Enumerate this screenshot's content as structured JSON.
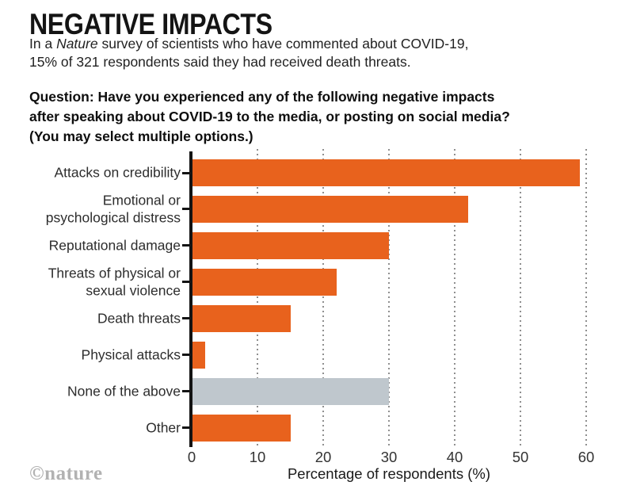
{
  "header": {
    "title": "NEGATIVE IMPACTS",
    "subtitle": {
      "line1_pre": "In a ",
      "line1_italic": "Nature",
      "line1_post": " survey of scientists who have commented about COVID-19,",
      "line2": "15% of 321 respondents said they had received death threats."
    },
    "question_lines": [
      "Question: Have you experienced any of the following negative impacts",
      "after speaking about COVID-19 to the media, or posting on social media?",
      "(You may select multiple options.)"
    ]
  },
  "chart_data": {
    "type": "bar",
    "orientation": "horizontal",
    "title": "NEGATIVE IMPACTS",
    "xlabel": "Percentage of respondents (%)",
    "xlim": [
      0,
      60
    ],
    "xticks": [
      0,
      10,
      20,
      30,
      40,
      50,
      60
    ],
    "grid": "dotted-vertical",
    "bar_color": "#E8621D",
    "neutral_bar_color": "#BFC7CD",
    "categories": [
      "Attacks on credibility",
      "Emotional or psychological distress",
      "Reputational damage",
      "Threats of physical or sexual violence",
      "Death threats",
      "Physical attacks",
      "None of the above",
      "Other"
    ],
    "values": [
      59,
      42,
      30,
      22,
      15,
      2,
      30,
      15
    ],
    "bars": [
      {
        "label": "Attacks on credibility",
        "label_lines": [
          "Attacks on credibility"
        ],
        "value": 59,
        "color": "#E8621D"
      },
      {
        "label": "Emotional or psychological distress",
        "label_lines": [
          "Emotional or",
          "psychological distress"
        ],
        "value": 42,
        "color": "#E8621D"
      },
      {
        "label": "Reputational damage",
        "label_lines": [
          "Reputational damage"
        ],
        "value": 30,
        "color": "#E8621D"
      },
      {
        "label": "Threats of physical or sexual violence",
        "label_lines": [
          "Threats of physical or",
          "sexual violence"
        ],
        "value": 22,
        "color": "#E8621D"
      },
      {
        "label": "Death threats",
        "label_lines": [
          "Death threats"
        ],
        "value": 15,
        "color": "#E8621D"
      },
      {
        "label": "Physical attacks",
        "label_lines": [
          "Physical attacks"
        ],
        "value": 2,
        "color": "#E8621D"
      },
      {
        "label": "None of the above",
        "label_lines": [
          "None of the above"
        ],
        "value": 30,
        "color": "#BFC7CD"
      },
      {
        "label": "Other",
        "label_lines": [
          "Other"
        ],
        "value": 15,
        "color": "#E8621D"
      }
    ]
  },
  "footer": {
    "watermark": "©nature"
  }
}
